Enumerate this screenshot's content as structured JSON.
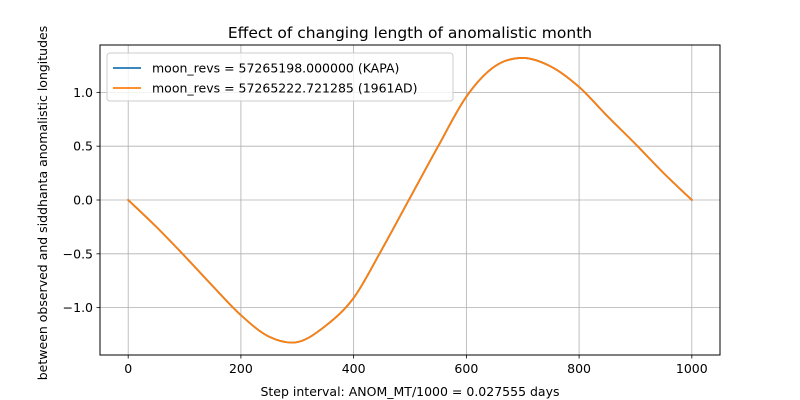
{
  "chart_data": {
    "type": "line",
    "title": "Effect of changing length of anomalistic month",
    "xlabel": "Step interval: ANOM_MT/1000 = 0.027555 days",
    "ylabel": "between observed and siddhanta anomalistic longitudes",
    "xlim": [
      -50,
      1050
    ],
    "ylim": [
      -1.44,
      1.44
    ],
    "xticks": [
      0,
      200,
      400,
      600,
      800,
      1000
    ],
    "yticks": [
      -1.0,
      -0.5,
      0.0,
      0.5,
      1.0
    ],
    "ytick_labels": [
      "−1.0",
      "−0.5",
      "0.0",
      "0.5",
      "1.0"
    ],
    "grid": true,
    "legend_position": "top-left",
    "series": [
      {
        "name": "moon_revs = 57265198.000000 (KAPA)",
        "color": "#1f77b4",
        "x": [
          0,
          50,
          100,
          150,
          200,
          250,
          300,
          350,
          400,
          450,
          500,
          550,
          600,
          650,
          700,
          750,
          800,
          850,
          900,
          950,
          1000
        ],
        "y": [
          0.0,
          -0.25,
          -0.52,
          -0.8,
          -1.07,
          -1.27,
          -1.32,
          -1.17,
          -0.91,
          -0.46,
          0.02,
          0.5,
          0.96,
          1.24,
          1.32,
          1.24,
          1.05,
          0.78,
          0.52,
          0.25,
          0.0
        ]
      },
      {
        "name": "moon_revs = 57265222.721285 (1961AD)",
        "color": "#ff7f0e",
        "x": [
          0,
          50,
          100,
          150,
          200,
          250,
          300,
          350,
          400,
          450,
          500,
          550,
          600,
          650,
          700,
          750,
          800,
          850,
          900,
          950,
          1000
        ],
        "y": [
          0.0,
          -0.25,
          -0.52,
          -0.8,
          -1.07,
          -1.27,
          -1.32,
          -1.17,
          -0.91,
          -0.46,
          0.02,
          0.5,
          0.96,
          1.24,
          1.32,
          1.24,
          1.05,
          0.78,
          0.52,
          0.25,
          0.0
        ]
      }
    ]
  }
}
